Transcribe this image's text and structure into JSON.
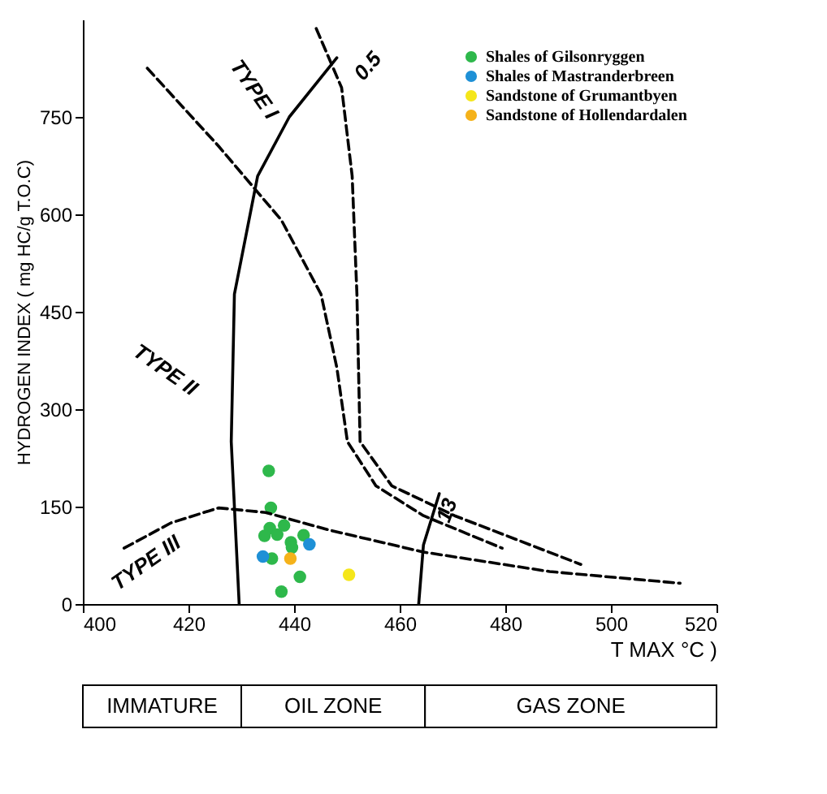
{
  "chart_data": {
    "type": "scatter",
    "xlabel": "T MAX °C )",
    "ylabel": "HYDROGEN INDEX ( mg HC/g T.O.C)",
    "xlim": [
      400,
      520
    ],
    "xticks": [
      400,
      420,
      440,
      460,
      480,
      500,
      520
    ],
    "ylim": [
      0,
      900
    ],
    "yticks": [
      0,
      150,
      300,
      450,
      600,
      750
    ],
    "legend": "top right",
    "series": [
      {
        "name": "Shales of Gilsonryggen",
        "color": "#2eb84b",
        "x": [
          435.2,
          435.6,
          435.4,
          438.1,
          434.4,
          436.8,
          439.4,
          439.6,
          441.8,
          435.8,
          441.1,
          437.6
        ],
        "values": [
          205,
          148,
          117,
          121,
          105,
          107,
          95,
          87,
          106,
          70,
          42,
          19
        ]
      },
      {
        "name": "Shales of Mastranderbreen",
        "color": "#1e90d6",
        "x": [
          434.1,
          442.9
        ],
        "values": [
          73,
          92
        ]
      },
      {
        "name": "Sandstone of Grumantbyen",
        "color": "#f5e61a",
        "x": [
          450.4
        ],
        "values": [
          45
        ]
      },
      {
        "name": "Sandstone of Hollendardalen",
        "color": "#f5b21a",
        "x": [
          439.3
        ],
        "values": [
          70
        ]
      },
      {
        "type": "line",
        "line_style": "dashed",
        "color": "#000000",
        "x": [
          444.2,
          449.0,
          451.0,
          451.9,
          452.5,
          458.5,
          470.4,
          494.3
        ],
        "values": [
          886,
          795,
          659,
          477,
          250,
          182,
          136,
          61
        ]
      },
      {
        "type": "line",
        "line_style": "dashed",
        "color": "#000000",
        "x": [
          412.2,
          425.7,
          437.6,
          445.1,
          448.1,
          450.1,
          455.5,
          464.5,
          479.4
        ],
        "values": [
          825,
          705,
          591,
          477,
          364,
          250,
          182,
          136,
          86
        ]
      },
      {
        "type": "line",
        "line_style": "dashed",
        "color": "#000000",
        "x": [
          407.8,
          416.7,
          425.7,
          434.6,
          446.6,
          464.5,
          488.4,
          513.1
        ],
        "values": [
          86,
          125,
          148,
          141,
          114,
          80,
          50,
          32
        ]
      },
      {
        "type": "line",
        "line_style": "solid",
        "color": "#000000",
        "x": [
          429.6,
          428.1,
          428.7,
          433.1,
          439.1,
          448.1
        ],
        "values": [
          0,
          250,
          477,
          659,
          750,
          841
        ]
      },
      {
        "type": "line",
        "line_style": "solid",
        "color": "#000000",
        "x": [
          463.6,
          464.5,
          467.5
        ],
        "values": [
          0,
          91,
          170
        ]
      }
    ],
    "annotations": [
      "TYPE I",
      "TYPE II",
      "TYPE III",
      "0.5",
      "13",
      "IMMATURE",
      "OIL ZONE",
      "GAS ZONE"
    ]
  }
}
